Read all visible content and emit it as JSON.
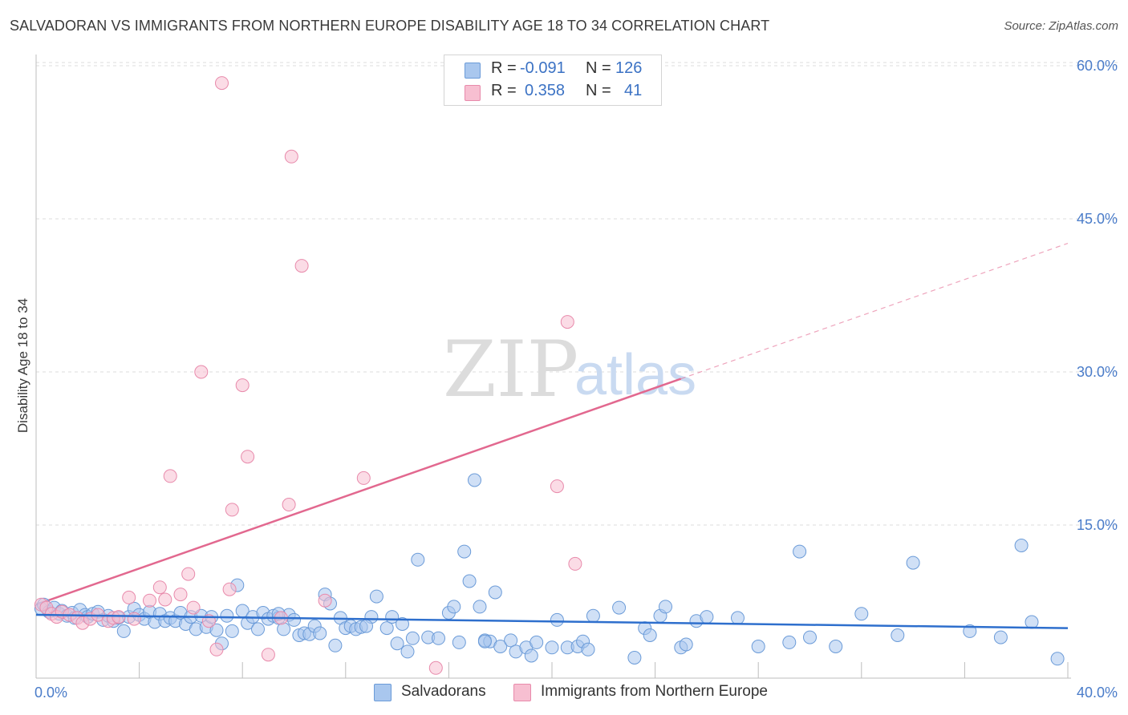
{
  "title": "SALVADORAN VS IMMIGRANTS FROM NORTHERN EUROPE DISABILITY AGE 18 TO 34 CORRELATION CHART",
  "source": "Source: ZipAtlas.com",
  "watermark": {
    "zip": "ZIP",
    "atlas": "atlas"
  },
  "legend": {
    "rows": [
      {
        "r_label": "R =",
        "r_value": "-0.091",
        "n_label": "N =",
        "n_value": "126",
        "color": "#a9c7ee",
        "border": "#6b9bd8"
      },
      {
        "r_label": "R =",
        "r_value": "0.358",
        "n_label": "N =",
        "n_value": "41",
        "color": "#f7bfd1",
        "border": "#e88aab"
      }
    ]
  },
  "chart_data": {
    "type": "scatter",
    "title": "SALVADORAN VS IMMIGRANTS FROM NORTHERN EUROPE DISABILITY AGE 18 TO 34 CORRELATION CHART",
    "xlabel": "",
    "ylabel": "Disability Age 18 to 34",
    "xlim": [
      0,
      40
    ],
    "ylim": [
      0,
      60
    ],
    "x_tick_labels": [
      "0.0%",
      "40.0%"
    ],
    "y_tick_values": [
      15,
      30,
      45,
      60
    ],
    "y_tick_labels": [
      "15.0%",
      "30.0%",
      "45.0%",
      "60.0%"
    ],
    "grid": true,
    "series": [
      {
        "name": "Salvadorans",
        "color": "#a9c7ee",
        "stroke": "#6b9bd8",
        "line_color": "#2e6fcd",
        "trend": {
          "x0": 0,
          "y0": 6.2,
          "x1": 40,
          "y1": 4.9
        },
        "points": [
          [
            0.2,
            6.8
          ],
          [
            0.3,
            7.2
          ],
          [
            0.5,
            6.5
          ],
          [
            0.7,
            6.9
          ],
          [
            0.9,
            6.3
          ],
          [
            1.0,
            6.6
          ],
          [
            1.2,
            6.1
          ],
          [
            1.4,
            6.4
          ],
          [
            1.5,
            5.9
          ],
          [
            1.7,
            6.7
          ],
          [
            1.9,
            6.2
          ],
          [
            2.0,
            6.0
          ],
          [
            2.2,
            6.3
          ],
          [
            2.4,
            6.5
          ],
          [
            2.6,
            5.7
          ],
          [
            2.8,
            6.1
          ],
          [
            3.0,
            5.6
          ],
          [
            3.2,
            5.9
          ],
          [
            3.4,
            4.6
          ],
          [
            3.6,
            6.0
          ],
          [
            3.8,
            6.8
          ],
          [
            4.0,
            6.2
          ],
          [
            4.2,
            5.8
          ],
          [
            4.4,
            6.5
          ],
          [
            4.6,
            5.5
          ],
          [
            4.8,
            6.3
          ],
          [
            5.0,
            5.6
          ],
          [
            5.2,
            5.9
          ],
          [
            5.4,
            5.6
          ],
          [
            5.6,
            6.4
          ],
          [
            5.8,
            5.3
          ],
          [
            6.0,
            6.0
          ],
          [
            6.2,
            4.8
          ],
          [
            6.4,
            6.1
          ],
          [
            6.6,
            5.0
          ],
          [
            6.8,
            6.0
          ],
          [
            7.0,
            4.7
          ],
          [
            7.2,
            3.4
          ],
          [
            7.4,
            6.1
          ],
          [
            7.6,
            4.6
          ],
          [
            7.8,
            9.1
          ],
          [
            8.0,
            6.6
          ],
          [
            8.2,
            5.4
          ],
          [
            8.4,
            6.0
          ],
          [
            8.6,
            4.8
          ],
          [
            8.8,
            6.4
          ],
          [
            9.0,
            5.8
          ],
          [
            9.2,
            6.1
          ],
          [
            9.4,
            5.9
          ],
          [
            9.6,
            4.8
          ],
          [
            9.8,
            6.2
          ],
          [
            10.0,
            5.7
          ],
          [
            10.2,
            4.2
          ],
          [
            10.4,
            4.4
          ],
          [
            10.6,
            4.3
          ],
          [
            10.8,
            5.1
          ],
          [
            11.0,
            4.4
          ],
          [
            11.2,
            8.2
          ],
          [
            11.4,
            7.3
          ],
          [
            11.6,
            3.2
          ],
          [
            11.8,
            5.9
          ],
          [
            12.0,
            4.9
          ],
          [
            12.2,
            5.1
          ],
          [
            12.4,
            4.8
          ],
          [
            12.6,
            5.0
          ],
          [
            13.0,
            6.0
          ],
          [
            13.2,
            8.0
          ],
          [
            13.6,
            4.9
          ],
          [
            13.8,
            6.0
          ],
          [
            14.0,
            3.4
          ],
          [
            14.2,
            5.3
          ],
          [
            14.4,
            2.6
          ],
          [
            14.6,
            3.9
          ],
          [
            14.8,
            11.6
          ],
          [
            15.2,
            4.0
          ],
          [
            15.6,
            3.9
          ],
          [
            16.0,
            6.4
          ],
          [
            16.2,
            7.0
          ],
          [
            16.4,
            3.5
          ],
          [
            16.6,
            12.4
          ],
          [
            16.8,
            9.5
          ],
          [
            17.0,
            19.4
          ],
          [
            17.2,
            7.0
          ],
          [
            17.4,
            3.7
          ],
          [
            17.6,
            3.6
          ],
          [
            17.8,
            8.4
          ],
          [
            18.0,
            3.1
          ],
          [
            18.4,
            3.7
          ],
          [
            18.6,
            2.6
          ],
          [
            19.0,
            3.0
          ],
          [
            19.2,
            2.2
          ],
          [
            19.4,
            3.5
          ],
          [
            20.0,
            3.0
          ],
          [
            20.2,
            5.7
          ],
          [
            20.6,
            3.0
          ],
          [
            21.0,
            3.1
          ],
          [
            21.2,
            3.6
          ],
          [
            21.4,
            2.8
          ],
          [
            21.6,
            6.1
          ],
          [
            22.6,
            6.9
          ],
          [
            23.2,
            2.0
          ],
          [
            23.6,
            4.9
          ],
          [
            23.8,
            4.2
          ],
          [
            24.2,
            6.1
          ],
          [
            24.4,
            7.0
          ],
          [
            25.0,
            3.0
          ],
          [
            25.2,
            3.3
          ],
          [
            25.6,
            5.6
          ],
          [
            26.0,
            6.0
          ],
          [
            27.2,
            5.9
          ],
          [
            28.0,
            3.1
          ],
          [
            29.2,
            3.5
          ],
          [
            29.6,
            12.4
          ],
          [
            30.0,
            4.0
          ],
          [
            31.0,
            3.1
          ],
          [
            32.0,
            6.3
          ],
          [
            33.4,
            4.2
          ],
          [
            34.0,
            11.3
          ],
          [
            36.2,
            4.6
          ],
          [
            37.4,
            4.0
          ],
          [
            38.2,
            13.0
          ],
          [
            38.6,
            5.5
          ],
          [
            39.6,
            1.9
          ],
          [
            17.4,
            3.6
          ],
          [
            9.4,
            6.3
          ],
          [
            12.8,
            5.1
          ]
        ]
      },
      {
        "name": "Immigrants from Northern Europe",
        "color": "#f7bfd1",
        "stroke": "#e88aab",
        "line_color": "#e2688f",
        "trend": {
          "x0": 0,
          "y0": 7.2,
          "x1": 40,
          "y1": 42.6
        },
        "trend_solid_until_x": 25.0,
        "points": [
          [
            0.2,
            7.2
          ],
          [
            0.4,
            6.9
          ],
          [
            0.6,
            6.3
          ],
          [
            0.8,
            6.0
          ],
          [
            1.0,
            6.5
          ],
          [
            1.3,
            6.2
          ],
          [
            1.6,
            5.9
          ],
          [
            1.8,
            5.4
          ],
          [
            2.1,
            5.8
          ],
          [
            2.4,
            6.2
          ],
          [
            2.8,
            5.6
          ],
          [
            3.0,
            5.9
          ],
          [
            3.2,
            6.0
          ],
          [
            3.6,
            7.9
          ],
          [
            3.8,
            5.8
          ],
          [
            4.4,
            7.6
          ],
          [
            4.8,
            8.9
          ],
          [
            5.0,
            7.7
          ],
          [
            5.2,
            19.8
          ],
          [
            5.6,
            8.2
          ],
          [
            5.9,
            10.2
          ],
          [
            6.1,
            6.9
          ],
          [
            6.4,
            30.0
          ],
          [
            6.7,
            5.6
          ],
          [
            7.0,
            2.8
          ],
          [
            7.2,
            58.3
          ],
          [
            7.5,
            8.7
          ],
          [
            7.6,
            16.5
          ],
          [
            8.0,
            28.7
          ],
          [
            8.2,
            21.7
          ],
          [
            9.0,
            2.3
          ],
          [
            9.5,
            5.9
          ],
          [
            9.8,
            17.0
          ],
          [
            9.9,
            51.1
          ],
          [
            10.3,
            40.4
          ],
          [
            11.2,
            7.6
          ],
          [
            12.7,
            19.6
          ],
          [
            15.5,
            1.0
          ],
          [
            20.2,
            18.8
          ],
          [
            20.6,
            34.9
          ],
          [
            20.9,
            11.2
          ]
        ]
      }
    ]
  }
}
